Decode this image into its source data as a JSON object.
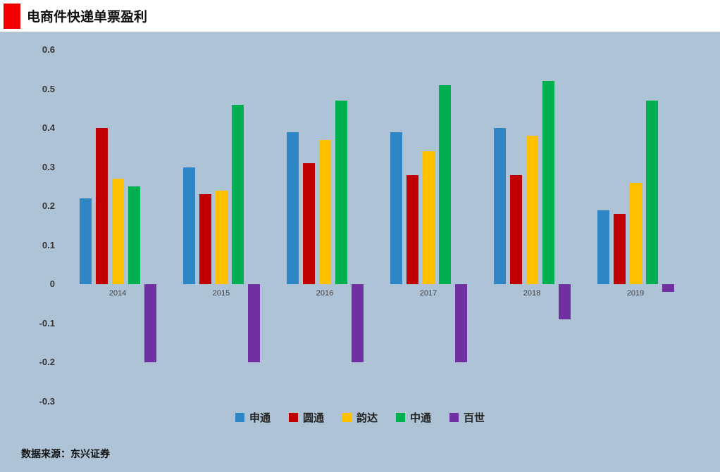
{
  "header": {
    "title": "电商件快递单票盈利",
    "marker_color": "#f20000"
  },
  "footer": {
    "source": "数据来源：东兴证券"
  },
  "chart_data": {
    "type": "bar",
    "title": "电商件快递单票盈利",
    "categories": [
      "2014",
      "2015",
      "2016",
      "2017",
      "2018",
      "2019"
    ],
    "series": [
      {
        "name": "申通",
        "color": "#2e86c5",
        "values": [
          0.22,
          0.3,
          0.39,
          0.39,
          0.4,
          0.19
        ]
      },
      {
        "name": "圆通",
        "color": "#c00000",
        "values": [
          0.4,
          0.23,
          0.31,
          0.28,
          0.28,
          0.18
        ]
      },
      {
        "name": "韵达",
        "color": "#ffc000",
        "values": [
          0.27,
          0.24,
          0.37,
          0.34,
          0.38,
          0.26
        ]
      },
      {
        "name": "中通",
        "color": "#00b050",
        "values": [
          0.25,
          0.46,
          0.47,
          0.51,
          0.52,
          0.47
        ]
      },
      {
        "name": "百世",
        "color": "#7030a0",
        "values": [
          -0.2,
          -0.2,
          -0.2,
          -0.2,
          -0.09,
          -0.02
        ]
      }
    ],
    "y_ticks": [
      "0.6",
      "0.5",
      "0.4",
      "0.3",
      "0.2",
      "0.1",
      "0",
      "-0.1",
      "-0.2",
      "-0.3"
    ],
    "ylim": [
      -0.3,
      0.6
    ],
    "grid": false,
    "legend_position": "bottom",
    "background": "#aec3d6"
  }
}
